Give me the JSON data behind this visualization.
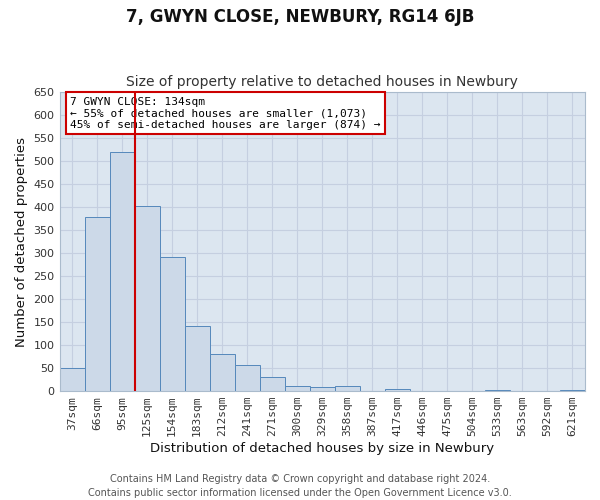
{
  "title": "7, GWYN CLOSE, NEWBURY, RG14 6JB",
  "subtitle": "Size of property relative to detached houses in Newbury",
  "xlabel": "Distribution of detached houses by size in Newbury",
  "ylabel": "Number of detached properties",
  "categories": [
    "37sqm",
    "66sqm",
    "95sqm",
    "125sqm",
    "154sqm",
    "183sqm",
    "212sqm",
    "241sqm",
    "271sqm",
    "300sqm",
    "329sqm",
    "358sqm",
    "387sqm",
    "417sqm",
    "446sqm",
    "475sqm",
    "504sqm",
    "533sqm",
    "563sqm",
    "592sqm",
    "621sqm"
  ],
  "values": [
    50,
    378,
    520,
    403,
    292,
    142,
    80,
    57,
    30,
    10,
    8,
    12,
    0,
    5,
    0,
    0,
    0,
    3,
    0,
    0,
    3
  ],
  "bar_color": "#ccd9e8",
  "bar_edge_color": "#5588bb",
  "grid_color": "#c5cfe0",
  "background_color": "#dce6f0",
  "vline_color": "#cc0000",
  "annotation_title": "7 GWYN CLOSE: 134sqm",
  "annotation_line1": "← 55% of detached houses are smaller (1,073)",
  "annotation_line2": "45% of semi-detached houses are larger (874) →",
  "annotation_box_color": "#ffffff",
  "annotation_box_edge": "#cc0000",
  "ylim": [
    0,
    650
  ],
  "yticks": [
    0,
    50,
    100,
    150,
    200,
    250,
    300,
    350,
    400,
    450,
    500,
    550,
    600,
    650
  ],
  "footer_line1": "Contains HM Land Registry data © Crown copyright and database right 2024.",
  "footer_line2": "Contains public sector information licensed under the Open Government Licence v3.0.",
  "title_fontsize": 12,
  "subtitle_fontsize": 10,
  "axis_label_fontsize": 9.5,
  "tick_fontsize": 8,
  "annotation_fontsize": 8,
  "footer_fontsize": 7
}
